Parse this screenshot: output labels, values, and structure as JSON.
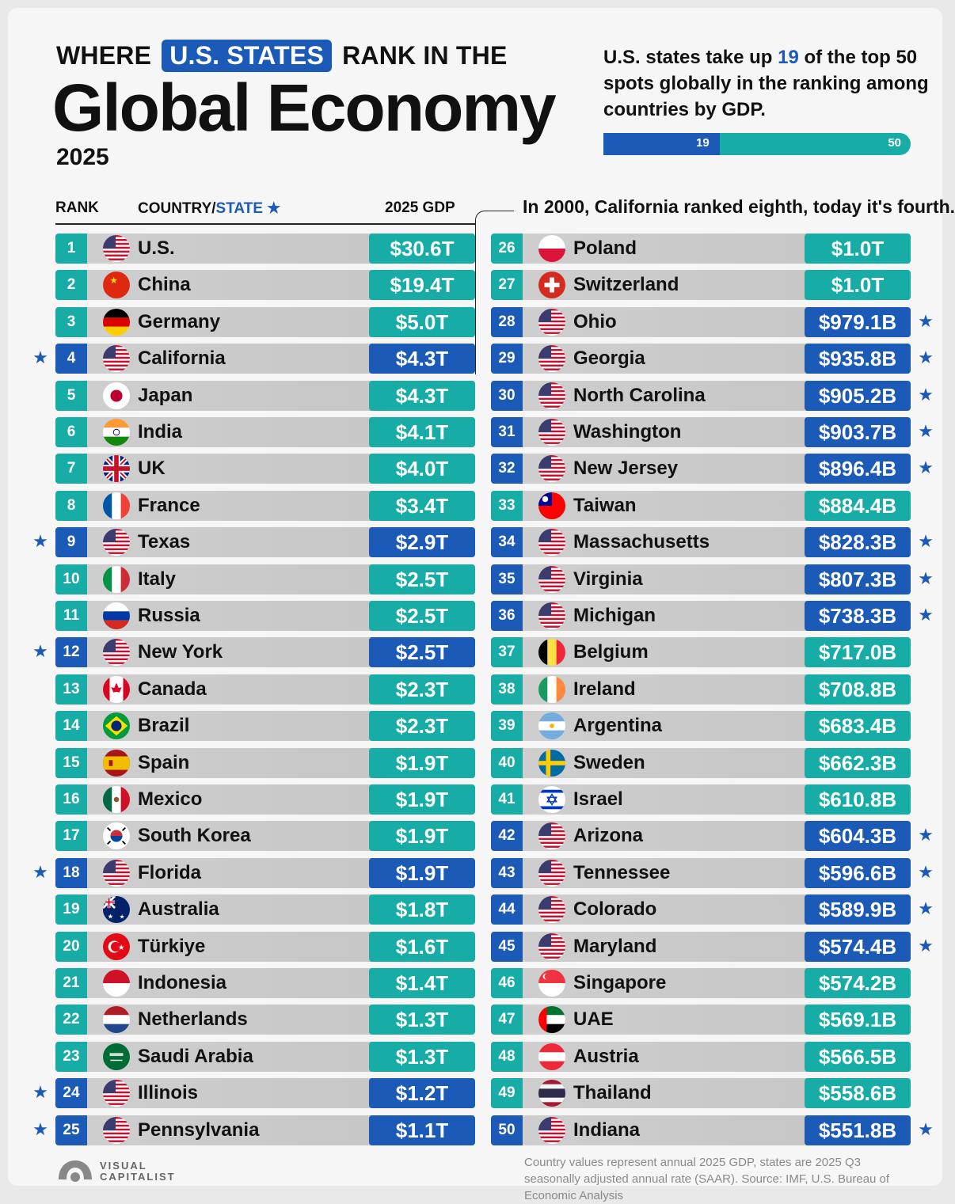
{
  "header": {
    "title_pre": "WHERE",
    "title_highlight": "U.S. STATES",
    "title_post": "RANK IN THE",
    "title_main": "Global Economy",
    "year": "2025"
  },
  "intro": {
    "text_before": "U.S. states take up",
    "highlight": "19",
    "text_after": "of the top 50 spots globally in the ranking among countries by GDP.",
    "bar_numerator": 19,
    "bar_denominator": 50,
    "bar_numerator_label": "19",
    "bar_denominator_label": "50"
  },
  "table_headers": {
    "rank": "RANK",
    "country": "COUNTRY/",
    "state": "STATE",
    "gdp": "2025 GDP"
  },
  "annotation": "In 2000, California ranked eighth, today it's fourth.",
  "colors": {
    "country": "#17ada6",
    "state": "#1c5ab8",
    "bar": "#c9c9c9"
  },
  "chart_data": {
    "type": "table",
    "columns": [
      "Rank",
      "Country/State",
      "2025 GDP"
    ],
    "rows": [
      {
        "rank": 1,
        "name": "U.S.",
        "gdp": "$30.6T",
        "state": false,
        "flag": "us"
      },
      {
        "rank": 2,
        "name": "China",
        "gdp": "$19.4T",
        "state": false,
        "flag": "cn"
      },
      {
        "rank": 3,
        "name": "Germany",
        "gdp": "$5.0T",
        "state": false,
        "flag": "de"
      },
      {
        "rank": 4,
        "name": "California",
        "gdp": "$4.3T",
        "state": true,
        "flag": "us"
      },
      {
        "rank": 5,
        "name": "Japan",
        "gdp": "$4.3T",
        "state": false,
        "flag": "jp"
      },
      {
        "rank": 6,
        "name": "India",
        "gdp": "$4.1T",
        "state": false,
        "flag": "in"
      },
      {
        "rank": 7,
        "name": "UK",
        "gdp": "$4.0T",
        "state": false,
        "flag": "uk"
      },
      {
        "rank": 8,
        "name": "France",
        "gdp": "$3.4T",
        "state": false,
        "flag": "fr"
      },
      {
        "rank": 9,
        "name": "Texas",
        "gdp": "$2.9T",
        "state": true,
        "flag": "us"
      },
      {
        "rank": 10,
        "name": "Italy",
        "gdp": "$2.5T",
        "state": false,
        "flag": "it"
      },
      {
        "rank": 11,
        "name": "Russia",
        "gdp": "$2.5T",
        "state": false,
        "flag": "ru"
      },
      {
        "rank": 12,
        "name": "New York",
        "gdp": "$2.5T",
        "state": true,
        "flag": "us"
      },
      {
        "rank": 13,
        "name": "Canada",
        "gdp": "$2.3T",
        "state": false,
        "flag": "ca"
      },
      {
        "rank": 14,
        "name": "Brazil",
        "gdp": "$2.3T",
        "state": false,
        "flag": "br"
      },
      {
        "rank": 15,
        "name": "Spain",
        "gdp": "$1.9T",
        "state": false,
        "flag": "es"
      },
      {
        "rank": 16,
        "name": "Mexico",
        "gdp": "$1.9T",
        "state": false,
        "flag": "mx"
      },
      {
        "rank": 17,
        "name": "South Korea",
        "gdp": "$1.9T",
        "state": false,
        "flag": "kr"
      },
      {
        "rank": 18,
        "name": "Florida",
        "gdp": "$1.9T",
        "state": true,
        "flag": "us"
      },
      {
        "rank": 19,
        "name": "Australia",
        "gdp": "$1.8T",
        "state": false,
        "flag": "au"
      },
      {
        "rank": 20,
        "name": "Türkiye",
        "gdp": "$1.6T",
        "state": false,
        "flag": "tr"
      },
      {
        "rank": 21,
        "name": "Indonesia",
        "gdp": "$1.4T",
        "state": false,
        "flag": "id"
      },
      {
        "rank": 22,
        "name": "Netherlands",
        "gdp": "$1.3T",
        "state": false,
        "flag": "nl"
      },
      {
        "rank": 23,
        "name": "Saudi Arabia",
        "gdp": "$1.3T",
        "state": false,
        "flag": "sa"
      },
      {
        "rank": 24,
        "name": "Illinois",
        "gdp": "$1.2T",
        "state": true,
        "flag": "us"
      },
      {
        "rank": 25,
        "name": "Pennsylvania",
        "gdp": "$1.1T",
        "state": true,
        "flag": "us"
      },
      {
        "rank": 26,
        "name": "Poland",
        "gdp": "$1.0T",
        "state": false,
        "flag": "pl"
      },
      {
        "rank": 27,
        "name": "Switzerland",
        "gdp": "$1.0T",
        "state": false,
        "flag": "ch"
      },
      {
        "rank": 28,
        "name": "Ohio",
        "gdp": "$979.1B",
        "state": true,
        "flag": "us"
      },
      {
        "rank": 29,
        "name": "Georgia",
        "gdp": "$935.8B",
        "state": true,
        "flag": "us"
      },
      {
        "rank": 30,
        "name": "North Carolina",
        "gdp": "$905.2B",
        "state": true,
        "flag": "us"
      },
      {
        "rank": 31,
        "name": "Washington",
        "gdp": "$903.7B",
        "state": true,
        "flag": "us"
      },
      {
        "rank": 32,
        "name": "New Jersey",
        "gdp": "$896.4B",
        "state": true,
        "flag": "us"
      },
      {
        "rank": 33,
        "name": "Taiwan",
        "gdp": "$884.4B",
        "state": false,
        "flag": "tw"
      },
      {
        "rank": 34,
        "name": "Massachusetts",
        "gdp": "$828.3B",
        "state": true,
        "flag": "us"
      },
      {
        "rank": 35,
        "name": "Virginia",
        "gdp": "$807.3B",
        "state": true,
        "flag": "us"
      },
      {
        "rank": 36,
        "name": "Michigan",
        "gdp": "$738.3B",
        "state": true,
        "flag": "us"
      },
      {
        "rank": 37,
        "name": "Belgium",
        "gdp": "$717.0B",
        "state": false,
        "flag": "be"
      },
      {
        "rank": 38,
        "name": "Ireland",
        "gdp": "$708.8B",
        "state": false,
        "flag": "ie"
      },
      {
        "rank": 39,
        "name": "Argentina",
        "gdp": "$683.4B",
        "state": false,
        "flag": "ar"
      },
      {
        "rank": 40,
        "name": "Sweden",
        "gdp": "$662.3B",
        "state": false,
        "flag": "se"
      },
      {
        "rank": 41,
        "name": "Israel",
        "gdp": "$610.8B",
        "state": false,
        "flag": "il"
      },
      {
        "rank": 42,
        "name": "Arizona",
        "gdp": "$604.3B",
        "state": true,
        "flag": "us"
      },
      {
        "rank": 43,
        "name": "Tennessee",
        "gdp": "$596.6B",
        "state": true,
        "flag": "us"
      },
      {
        "rank": 44,
        "name": "Colorado",
        "gdp": "$589.9B",
        "state": true,
        "flag": "us"
      },
      {
        "rank": 45,
        "name": "Maryland",
        "gdp": "$574.4B",
        "state": true,
        "flag": "us"
      },
      {
        "rank": 46,
        "name": "Singapore",
        "gdp": "$574.2B",
        "state": false,
        "flag": "sg"
      },
      {
        "rank": 47,
        "name": "UAE",
        "gdp": "$569.1B",
        "state": false,
        "flag": "ae"
      },
      {
        "rank": 48,
        "name": "Austria",
        "gdp": "$566.5B",
        "state": false,
        "flag": "at"
      },
      {
        "rank": 49,
        "name": "Thailand",
        "gdp": "$558.6B",
        "state": false,
        "flag": "th"
      },
      {
        "rank": 50,
        "name": "Indiana",
        "gdp": "$551.8B",
        "state": true,
        "flag": "us"
      }
    ]
  },
  "footer": {
    "logo": "VISUAL\nCAPITALIST",
    "source": "Country values represent annual 2025 GDP, states are 2025 Q3 seasonally adjusted annual rate (SAAR). Source: IMF, U.S. Bureau of Economic Analysis"
  }
}
